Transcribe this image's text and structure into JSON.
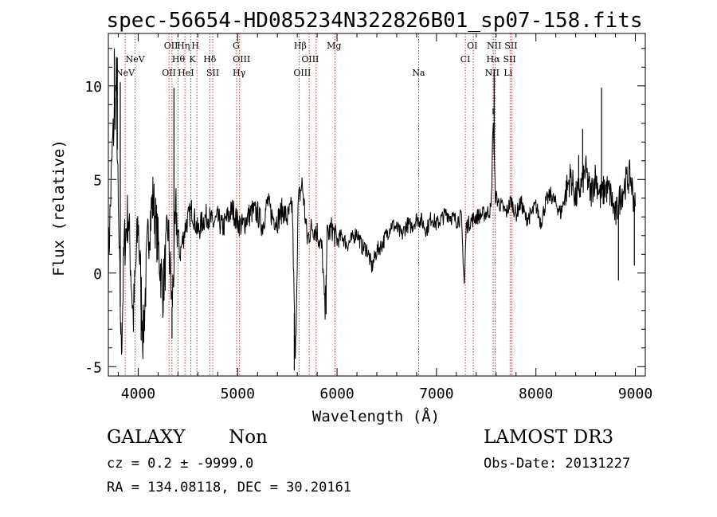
{
  "chart_data": {
    "type": "line",
    "title": "spec-56654-HD085234N322826B01_sp07-158.fits",
    "xlabel": "Wavelength (Å)",
    "ylabel": "Flux (relative)",
    "xlim": [
      3700,
      9100
    ],
    "ylim": [
      -5.5,
      12.8
    ],
    "x_ticks": [
      4000,
      5000,
      6000,
      7000,
      8000,
      9000
    ],
    "y_ticks": [
      -5,
      0,
      5,
      10
    ],
    "grid": false,
    "series_color": "#000000",
    "line_color": "#cc0000",
    "lines": [
      {
        "label": "NeV",
        "wavelength": 3869,
        "row": 3
      },
      {
        "label": "NeV",
        "wavelength": 3970,
        "row": 2
      },
      {
        "label": "OII",
        "wavelength": 4310,
        "row": 3
      },
      {
        "label": "OII",
        "wavelength": 4330,
        "row": 1
      },
      {
        "label": "Hθ",
        "wavelength": 4405,
        "row": 2
      },
      {
        "label": "Hη",
        "wavelength": 4455,
        "row": 1
      },
      {
        "label": "HeI",
        "wavelength": 4480,
        "row": 3
      },
      {
        "label": "K",
        "wavelength": 4545,
        "row": 2
      },
      {
        "label": "H",
        "wavelength": 4575,
        "row": 1
      },
      {
        "label": "Hδ",
        "wavelength": 4720,
        "row": 2
      },
      {
        "label": "SII",
        "wavelength": 4750,
        "row": 3
      },
      {
        "label": "G",
        "wavelength": 4985,
        "row": 1
      },
      {
        "label": "OIII",
        "wavelength": 5040,
        "row": 2
      },
      {
        "label": "Hγ",
        "wavelength": 5015,
        "row": 3
      },
      {
        "label": "Hβ",
        "wavelength": 5630,
        "row": 1
      },
      {
        "label": "OIII",
        "wavelength": 5730,
        "row": 2
      },
      {
        "label": "OIII",
        "wavelength": 5650,
        "row": 3
      },
      {
        "label": "Mg",
        "wavelength": 5970,
        "row": 1
      },
      {
        "label": "Na",
        "wavelength": 6820,
        "row": 3
      },
      {
        "label": "OI",
        "wavelength": 7360,
        "row": 1
      },
      {
        "label": "CI",
        "wavelength": 7290,
        "row": 2
      },
      {
        "label": "NII",
        "wavelength": 7580,
        "row": 1
      },
      {
        "label": "Hα",
        "wavelength": 7570,
        "row": 2
      },
      {
        "label": "NII",
        "wavelength": 7560,
        "row": 3
      },
      {
        "label": "SII",
        "wavelength": 7750,
        "row": 1
      },
      {
        "label": "SII",
        "wavelength": 7735,
        "row": 2
      },
      {
        "label": "Li",
        "wavelength": 7720,
        "row": 3
      }
    ],
    "line_markers": [
      3869,
      3970,
      4310,
      4340,
      4400,
      4470,
      4530,
      4590,
      4720,
      4750,
      4990,
      5020,
      5620,
      5720,
      5790,
      5980,
      6820,
      7290,
      7370,
      7570,
      7590,
      7740,
      7760
    ],
    "spectrum": {
      "x": [
        3700,
        3740,
        3780,
        3800,
        3830,
        3860,
        3900,
        3950,
        4000,
        4050,
        4100,
        4150,
        4200,
        4250,
        4300,
        4340,
        4380,
        4420,
        4480,
        4540,
        4600,
        4650,
        4700,
        4750,
        4800,
        4850,
        4900,
        4950,
        5000,
        5050,
        5100,
        5150,
        5200,
        5250,
        5300,
        5350,
        5400,
        5450,
        5500,
        5550,
        5580,
        5610,
        5650,
        5700,
        5750,
        5800,
        5850,
        5880,
        5900,
        5950,
        6000,
        6050,
        6100,
        6150,
        6200,
        6250,
        6300,
        6350,
        6400,
        6450,
        6500,
        6550,
        6600,
        6650,
        6700,
        6750,
        6800,
        6850,
        6900,
        6950,
        7000,
        7050,
        7100,
        7150,
        7200,
        7250,
        7280,
        7300,
        7350,
        7400,
        7450,
        7500,
        7550,
        7570,
        7590,
        7620,
        7650,
        7700,
        7750,
        7800,
        7850,
        7900,
        7950,
        8000,
        8050,
        8100,
        8150,
        8200,
        8250,
        8300,
        8350,
        8400,
        8450,
        8500,
        8550,
        8600,
        8650,
        8700,
        8750,
        8800,
        8850,
        8900,
        8950,
        9000
      ],
      "y": [
        0.5,
        6.5,
        10.2,
        3.0,
        -4.2,
        1.5,
        3.2,
        -2.5,
        2.8,
        -3.5,
        2.0,
        4.0,
        1.5,
        -1.0,
        2.5,
        -1.8,
        3.2,
        1.0,
        2.6,
        3.4,
        2.2,
        2.8,
        3.1,
        2.6,
        2.9,
        2.4,
        3.0,
        3.4,
        2.7,
        2.5,
        3.0,
        3.3,
        3.2,
        2.5,
        3.8,
        3.0,
        2.8,
        3.4,
        2.9,
        3.6,
        -5.0,
        3.8,
        4.8,
        1.8,
        2.5,
        2.2,
        1.2,
        -2.2,
        2.0,
        2.4,
        1.7,
        2.0,
        1.5,
        1.8,
        2.2,
        1.4,
        1.3,
        0.3,
        1.2,
        1.5,
        2.1,
        2.6,
        2.4,
        2.0,
        2.6,
        2.5,
        2.9,
        2.8,
        2.3,
        3.0,
        2.6,
        2.9,
        3.2,
        3.0,
        2.8,
        3.0,
        -0.6,
        2.5,
        2.8,
        3.0,
        3.1,
        3.2,
        3.4,
        8.5,
        4.2,
        3.8,
        3.6,
        3.2,
        3.9,
        3.1,
        3.8,
        2.9,
        3.1,
        3.6,
        2.7,
        3.8,
        4.2,
        3.7,
        3.2,
        4.3,
        5.2,
        4.0,
        4.6,
        5.5,
        4.2,
        5.2,
        4.0,
        4.6,
        4.2,
        3.0,
        4.1,
        4.8,
        5.2,
        3.4
      ]
    },
    "spikes": [
      {
        "x": 3760,
        "y": 12.0
      },
      {
        "x": 3790,
        "y": 11.5
      },
      {
        "x": 3820,
        "y": 10.2
      },
      {
        "x": 4030,
        "y": -3.6
      },
      {
        "x": 4340,
        "y": -3.5
      },
      {
        "x": 4360,
        "y": 9.9
      },
      {
        "x": 5570,
        "y": -5.2
      },
      {
        "x": 5890,
        "y": -2.2
      },
      {
        "x": 7580,
        "y": 10.8
      },
      {
        "x": 7570,
        "y": 8.8
      },
      {
        "x": 8430,
        "y": 6.3
      },
      {
        "x": 8470,
        "y": 7.7
      },
      {
        "x": 8660,
        "y": 9.9
      },
      {
        "x": 8830,
        "y": -0.4
      },
      {
        "x": 8990,
        "y": 0.4
      }
    ]
  },
  "info": {
    "class": "GALAXY",
    "subclass": "Non",
    "cz": "cz = 0.2 ± -9999.0",
    "coords": "RA = 134.08118, DEC =  30.20161",
    "survey": "LAMOST DR3",
    "obs_date": "Obs-Date: 20131227"
  }
}
